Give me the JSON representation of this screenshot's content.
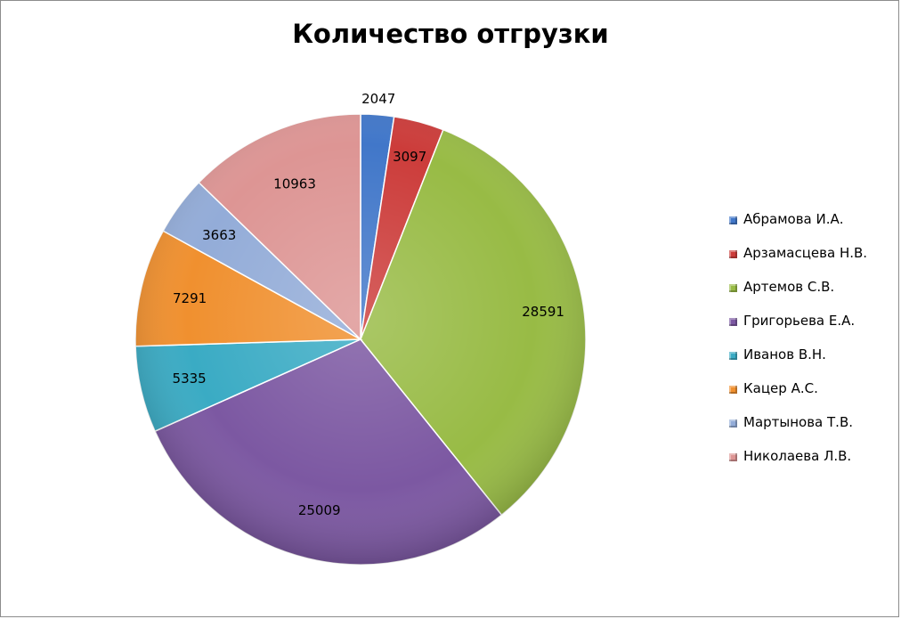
{
  "chart_data": {
    "type": "pie",
    "title": "Количество отгрузки",
    "categories": [
      "Абрамова И.А.",
      "Арзамасцева Н.В.",
      "Артемов С.В.",
      "Григорьева Е.А.",
      "Иванов В.Н.",
      "Кацер А.С.",
      "Мартынова Т.В.",
      "Николаева Л.В."
    ],
    "values": [
      2047,
      3097,
      28591,
      25009,
      5335,
      7291,
      3663,
      10963
    ],
    "colors": [
      "#4177c9",
      "#cc3c3a",
      "#98bb45",
      "#7c58a2",
      "#3aabc4",
      "#f0902f",
      "#93acd8",
      "#dd9594"
    ],
    "legend_position": "right",
    "data_labels": true
  }
}
